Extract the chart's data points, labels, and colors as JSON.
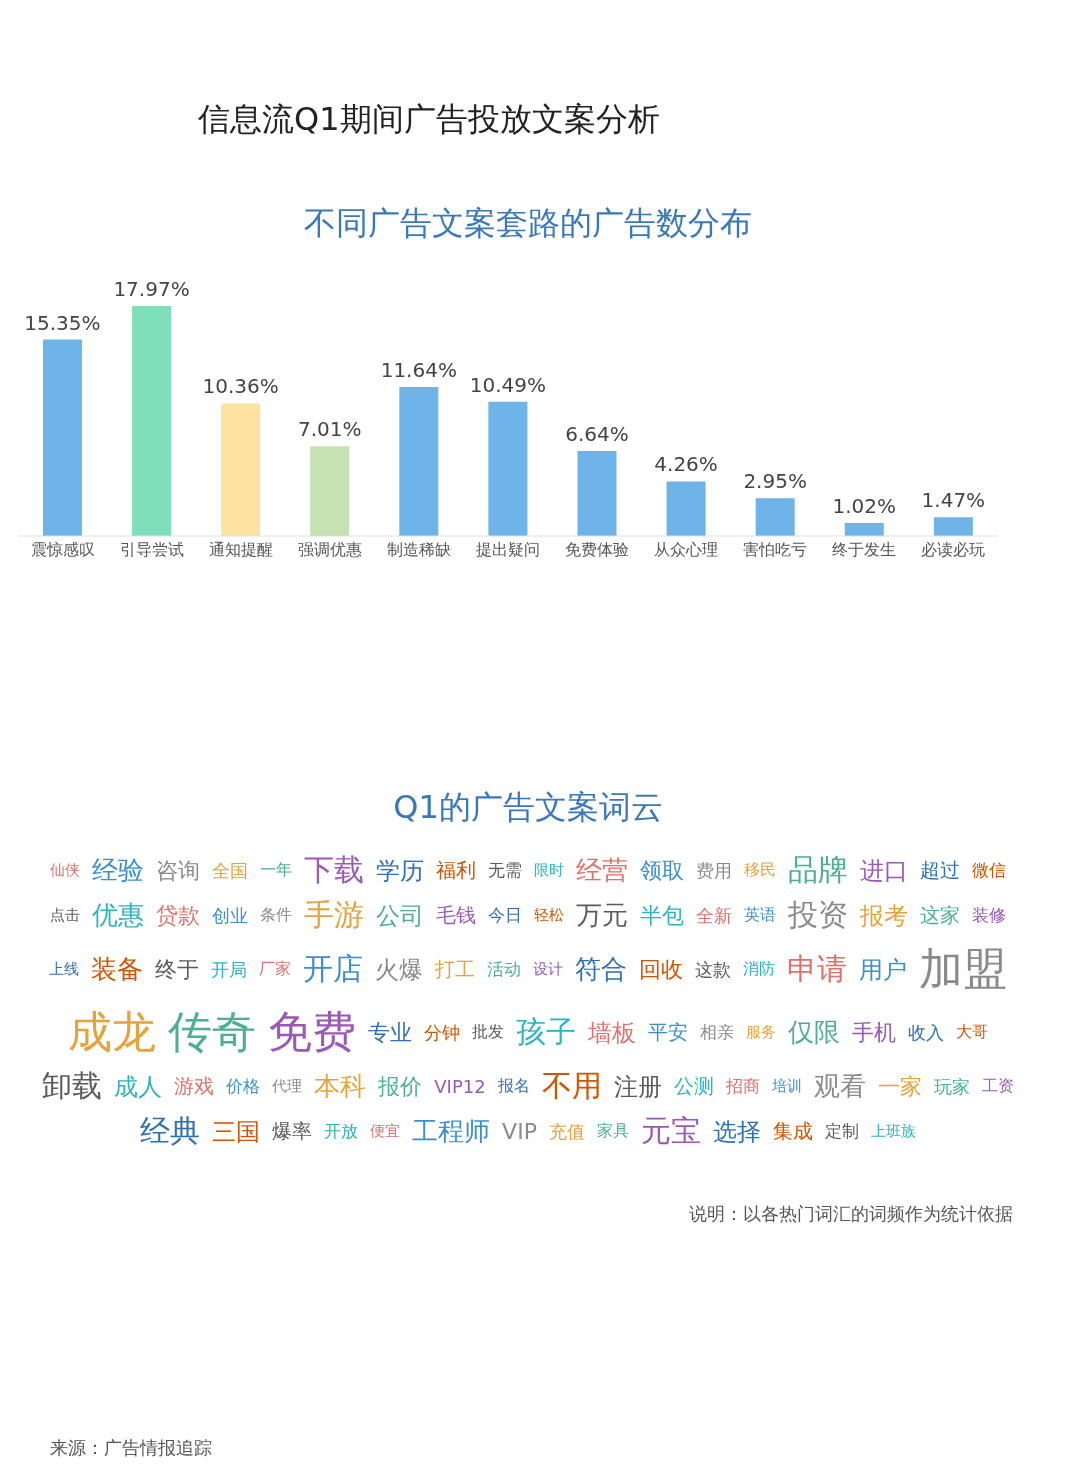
{
  "chart_data": [
    {
      "type": "bar",
      "title": "不同广告文案套路的广告数分布",
      "categories": [
        "震惊感叹",
        "引导尝试",
        "通知提醒",
        "强调优惠",
        "制造稀缺",
        "提出疑问",
        "免费体验",
        "从众心理",
        "害怕吃亏",
        "终于发生",
        "必读必玩"
      ],
      "values": [
        15.35,
        17.97,
        10.36,
        7.01,
        11.64,
        10.49,
        6.64,
        4.26,
        2.95,
        1.02,
        1.47
      ],
      "value_labels": [
        "15.35%",
        "17.97%",
        "10.36%",
        "7.01%",
        "11.64%",
        "10.49%",
        "6.64%",
        "4.26%",
        "2.95%",
        "1.02%",
        "1.47%"
      ],
      "colors": [
        "#6eb4e8",
        "#7ddfbc",
        "#fde2a2",
        "#c6e2b2",
        "#6eb4e8",
        "#6eb4e8",
        "#6eb4e8",
        "#6eb4e8",
        "#6eb4e8",
        "#6eb4e8",
        "#6eb4e8"
      ],
      "tick_labels": "x",
      "annotations": [
        "信息流Q1期间广告投放文案分析"
      ]
    },
    {
      "type": "other",
      "title": "Q1的广告文案词云",
      "annotations": [
        "仙侠",
        "经验",
        "咨询",
        "全国",
        "一年",
        "下载",
        "学历",
        "福利",
        "无需",
        "限时",
        "经营",
        "领取",
        "费用",
        "移民",
        "品牌",
        "进口",
        "超过",
        "微信",
        "点击",
        "优惠",
        "贷款",
        "创业",
        "条件",
        "手游",
        "公司",
        "毛钱",
        "今日",
        "轻松",
        "万元",
        "半包",
        "全新",
        "英语",
        "投资",
        "报考",
        "这家",
        "装修",
        "上线",
        "装备",
        "终于",
        "开局",
        "厂家",
        "开店",
        "火爆",
        "打工",
        "活动",
        "设计",
        "符合",
        "回收",
        "这款",
        "消防",
        "申请",
        "用户",
        "加盟",
        "成龙",
        "传奇",
        "免费",
        "专业",
        "分钟",
        "批发",
        "孩子",
        "墙板",
        "平安",
        "相亲",
        "服务",
        "仅限",
        "手机",
        "收入",
        "大哥",
        "卸载",
        "成人",
        "游戏",
        "价格",
        "代理",
        "本科",
        "报价",
        "VIP12",
        "报名",
        "不用",
        "注册",
        "公测",
        "招商",
        "培训",
        "观看",
        "一家",
        "玩家",
        "工资",
        "经典",
        "三国",
        "爆率",
        "开放",
        "便宜",
        "工程师",
        "VIP",
        "充值",
        "家具",
        "元宝",
        "选择",
        "集成",
        "定制",
        "上班族",
        "说明：以各热门词汇的词频作为统计依据",
        "来源：广告情报追踪"
      ]
    }
  ]
}
